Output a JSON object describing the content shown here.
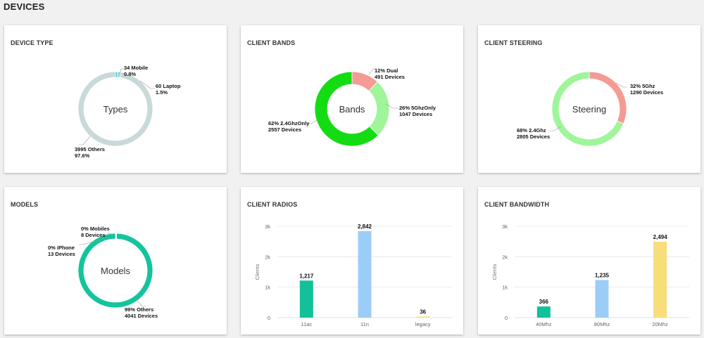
{
  "page_title": "DEVICES",
  "cards": {
    "device_type": {
      "title": "DEVICE TYPE",
      "center": "Types",
      "labels": {
        "mobile": [
          "34 Mobile",
          "0.8%"
        ],
        "laptop": [
          "60 Laptop",
          "1.5%"
        ],
        "others": [
          "3995 Others",
          "97.6%"
        ]
      }
    },
    "client_bands": {
      "title": "CLIENT BANDS",
      "center": "Bands",
      "labels": {
        "dual": [
          "12% Dual",
          "491 Devices"
        ],
        "g5": [
          "26% 5GhzOnly",
          "1047 Devices"
        ],
        "g24": [
          "62% 2.4GhzOnly",
          "2557 Devices"
        ]
      }
    },
    "client_steering": {
      "title": "CLIENT STEERING",
      "center": "Steering",
      "labels": {
        "g5": [
          "32% 5Ghz",
          "1290 Devices"
        ],
        "g24": [
          "68% 2.4Ghz",
          "2805 Devices"
        ]
      }
    },
    "models": {
      "title": "MODELS",
      "center": "Models",
      "labels": {
        "mobiles": [
          "0% Mobiles",
          "8 Devices"
        ],
        "iphone": [
          "0% iPhone",
          "13 Devices"
        ],
        "others": [
          "99% Others",
          "4041 Devices"
        ]
      }
    },
    "client_radios": {
      "title": "CLIENT RADIOS"
    },
    "client_bandwidth": {
      "title": "CLIENT BANDWIDTH"
    }
  },
  "chart_data": [
    {
      "type": "pie",
      "title": "DEVICE TYPE",
      "categories": [
        "Mobile",
        "Laptop",
        "Others"
      ],
      "values": [
        34,
        60,
        3995
      ],
      "colors": [
        "#3fc5cf",
        "#9ed8de",
        "#c7d9d8"
      ]
    },
    {
      "type": "pie",
      "title": "CLIENT BANDS",
      "categories": [
        "Dual",
        "5GhzOnly",
        "2.4GhzOnly"
      ],
      "values": [
        491,
        1047,
        2557
      ],
      "colors": [
        "#f49b94",
        "#9ff59a",
        "#13dc13"
      ]
    },
    {
      "type": "pie",
      "title": "CLIENT STEERING",
      "categories": [
        "5Ghz",
        "2.4Ghz"
      ],
      "values": [
        1290,
        2805
      ],
      "colors": [
        "#f49b94",
        "#9ff59a"
      ]
    },
    {
      "type": "pie",
      "title": "MODELS",
      "categories": [
        "Mobiles",
        "iPhone",
        "Others"
      ],
      "values": [
        8,
        13,
        4041
      ],
      "colors": [
        "#1ec3a4",
        "#7fd8c8",
        "#13c49e"
      ]
    },
    {
      "type": "bar",
      "title": "CLIENT RADIOS",
      "categories": [
        "11ac",
        "11n",
        "legacy"
      ],
      "values": [
        1217,
        2842,
        36
      ],
      "value_labels": [
        "1,217",
        "2,842",
        "36"
      ],
      "colors": [
        "#12c199",
        "#9ccdf8",
        "#f7de7a"
      ],
      "ylabel": "Clients",
      "yticks": [
        "0",
        "1k",
        "2k",
        "3k"
      ],
      "ylim": [
        0,
        3000
      ]
    },
    {
      "type": "bar",
      "title": "CLIENT BANDWIDTH",
      "categories": [
        "40Mhz",
        "80Mhz",
        "20Mhz"
      ],
      "values": [
        366,
        1235,
        2494
      ],
      "value_labels": [
        "366",
        "1,235",
        "2,494"
      ],
      "colors": [
        "#12c199",
        "#9ccdf8",
        "#f7de7a"
      ],
      "ylabel": "Clients",
      "yticks": [
        "0",
        "1k",
        "2k",
        "3k"
      ],
      "ylim": [
        0,
        3000
      ]
    }
  ]
}
